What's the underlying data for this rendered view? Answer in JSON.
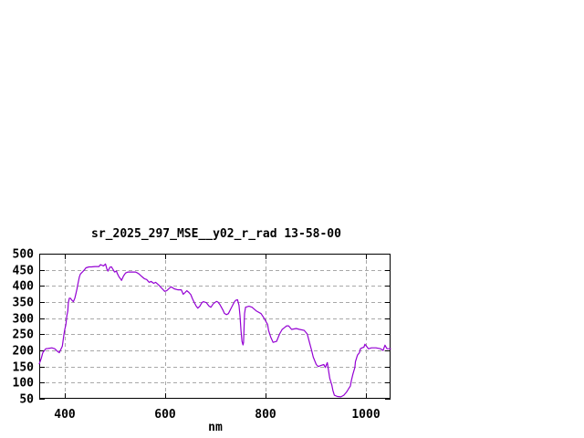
{
  "window": {
    "background": "#ffffff"
  },
  "chart_data": {
    "type": "line",
    "title": "sr_2025_297_MSE__y02_r_rad 13-58-00",
    "xlabel": "nm",
    "ylabel": "",
    "xlim": [
      350,
      1050
    ],
    "ylim": [
      50,
      500
    ],
    "xticks": [
      400,
      600,
      800,
      1000
    ],
    "yticks": [
      50,
      100,
      150,
      200,
      250,
      300,
      350,
      400,
      450,
      500
    ],
    "grid": true,
    "legend_position": "none",
    "colors": {
      "line": "#9400d3",
      "grid": "#a8a8a8",
      "axis": "#000000",
      "text": "#000000",
      "background": "#ffffff"
    },
    "series": [
      {
        "name": "sr_2025_297_MSE__y02_r_rad",
        "x": [
          350,
          354,
          357,
          363,
          368,
          375,
          381,
          387,
          390,
          396,
          399,
          401,
          403,
          405,
          407,
          408,
          410,
          412,
          416,
          418,
          421,
          423,
          425,
          427,
          429,
          430,
          432,
          436,
          440,
          443,
          449,
          454,
          461,
          469,
          472,
          478,
          482,
          485,
          487,
          491,
          494,
          500,
          504,
          505,
          509,
          513,
          514,
          518,
          522,
          527,
          535,
          542,
          546,
          549,
          555,
          560,
          564,
          569,
          573,
          578,
          582,
          588,
          595,
          600,
          604,
          610,
          613,
          619,
          626,
          633,
          637,
          641,
          644,
          648,
          652,
          655,
          659,
          663,
          666,
          670,
          674,
          677,
          683,
          688,
          692,
          697,
          703,
          706,
          710,
          716,
          719,
          723,
          727,
          732,
          738,
          741,
          745,
          748,
          750,
          752,
          754,
          756,
          757,
          759,
          761,
          768,
          774,
          783,
          792,
          798,
          805,
          807,
          811,
          816,
          823,
          829,
          834,
          838,
          843,
          847,
          853,
          862,
          869,
          878,
          884,
          889,
          893,
          896,
          902,
          906,
          911,
          917,
          920,
          924,
          926,
          929,
          933,
          935,
          938,
          944,
          951,
          957,
          962,
          970,
          972,
          975,
          979,
          980,
          984,
          988,
          990,
          993,
          997,
          999,
          1002,
          1006,
          1012,
          1021,
          1030,
          1035,
          1039,
          1043,
          1050
        ],
        "y": [
          158,
          175,
          193,
          205,
          206,
          208,
          205,
          196,
          193,
          213,
          248,
          265,
          280,
          308,
          322,
          348,
          362,
          362,
          354,
          351,
          362,
          376,
          390,
          405,
          420,
          428,
          437,
          443,
          450,
          456,
          459,
          459,
          460,
          460,
          466,
          462,
          468,
          451,
          446,
          458,
          459,
          443,
          446,
          440,
          428,
          420,
          417,
          431,
          440,
          443,
          443,
          443,
          440,
          437,
          428,
          422,
          420,
          411,
          414,
          408,
          411,
          403,
          391,
          383,
          385,
          394,
          397,
          391,
          388,
          388,
          374,
          380,
          385,
          380,
          373,
          361,
          348,
          337,
          331,
          337,
          348,
          351,
          348,
          338,
          334,
          345,
          352,
          350,
          342,
          325,
          315,
          311,
          314,
          330,
          348,
          355,
          357,
          340,
          308,
          262,
          228,
          217,
          225,
          314,
          334,
          337,
          334,
          322,
          314,
          300,
          280,
          262,
          242,
          225,
          228,
          251,
          265,
          270,
          276,
          276,
          265,
          268,
          265,
          262,
          251,
          222,
          199,
          179,
          156,
          150,
          153,
          156,
          147,
          162,
          142,
          113,
          93,
          76,
          61,
          57,
          56,
          61,
          70,
          90,
          107,
          127,
          147,
          165,
          185,
          193,
          205,
          208,
          210,
          219,
          213,
          205,
          208,
          208,
          205,
          200,
          216,
          205,
          205
        ]
      }
    ]
  }
}
